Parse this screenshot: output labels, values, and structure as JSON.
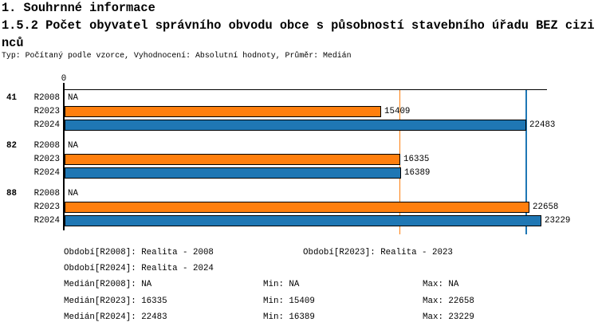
{
  "header": {
    "section_title": "1. Souhrnné informace",
    "chart_title_lines": [
      "1.5.2 Počet obyvatel správního obvodu obce s působností stavebního úřadu BEZ cizi",
      "nců"
    ],
    "subtitle": "Typ: Počítaný podle vzorce, Vyhodnocení: Absolutní hodnoty, Průměr: Medián"
  },
  "chart_data": {
    "type": "bar",
    "orientation": "horizontal",
    "title": "1.5.2 Počet obyvatel správního obvodu obce s působností stavebního úřadu BEZ cizinců",
    "subtitle": "Typ: Počítaný podle vzorce, Vyhodnocení: Absolutní hodnoty, Průměr: Medián",
    "axis": {
      "tick_label": "0",
      "xmin": 0,
      "xmax": 23500,
      "grid": false
    },
    "series_colors": {
      "R2023": "#ff7f0e",
      "R2024": "#1f77b4"
    },
    "categories": [
      "41",
      "82",
      "88"
    ],
    "groups": [
      {
        "label": "41",
        "rows": [
          {
            "series": "R2008",
            "value": null,
            "display": "NA"
          },
          {
            "series": "R2023",
            "value": 15409,
            "display": "15409"
          },
          {
            "series": "R2024",
            "value": 22483,
            "display": "22483"
          }
        ]
      },
      {
        "label": "82",
        "rows": [
          {
            "series": "R2008",
            "value": null,
            "display": "NA"
          },
          {
            "series": "R2023",
            "value": 16335,
            "display": "16335"
          },
          {
            "series": "R2024",
            "value": 16389,
            "display": "16389"
          }
        ]
      },
      {
        "label": "88",
        "rows": [
          {
            "series": "R2008",
            "value": null,
            "display": "NA"
          },
          {
            "series": "R2023",
            "value": 22658,
            "display": "22658"
          },
          {
            "series": "R2024",
            "value": 23229,
            "display": "23229"
          }
        ]
      }
    ],
    "reference_lines": [
      {
        "name": "median-R2023",
        "value": 16335,
        "color": "#ff7f0e"
      },
      {
        "name": "median-R2024",
        "value": 22483,
        "color": "#1f77b4"
      }
    ]
  },
  "legend": {
    "obdobi": [
      "Období[R2008]: Realita - 2008",
      "Období[R2023]: Realita - 2023",
      "Období[R2024]: Realita - 2024"
    ],
    "stats": [
      {
        "median": "Medián[R2008]: NA",
        "min": "Min: NA",
        "max": "Max: NA"
      },
      {
        "median": "Medián[R2023]: 16335",
        "min": "Min: 15409",
        "max": "Max: 22658"
      },
      {
        "median": "Medián[R2024]: 22483",
        "min": "Min: 16389",
        "max": "Max: 23229"
      }
    ]
  }
}
